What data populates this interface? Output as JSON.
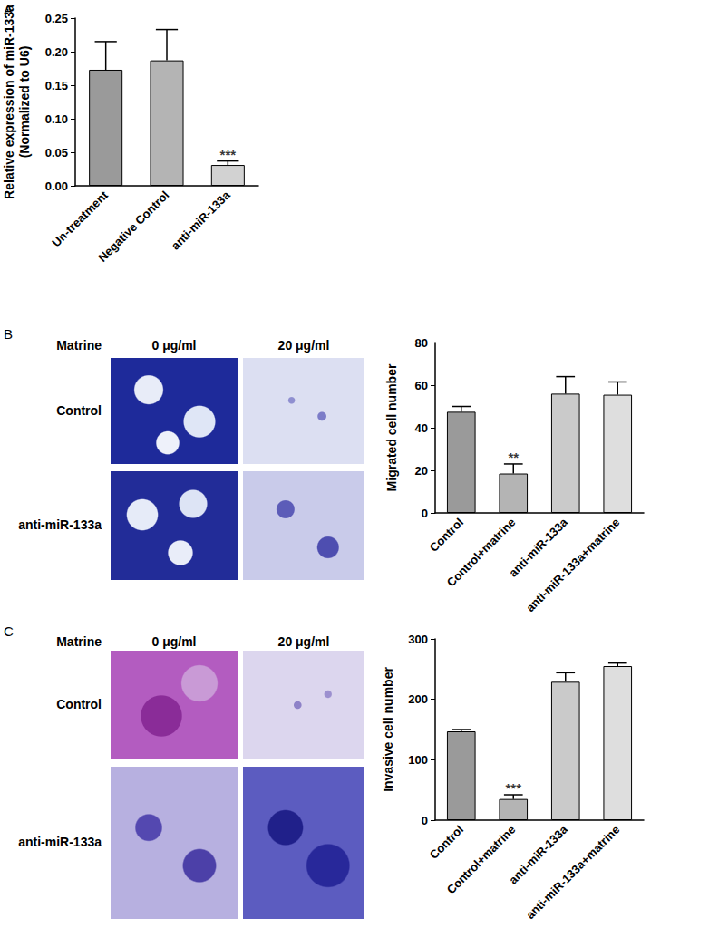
{
  "chart_data": [
    {
      "type": "bar",
      "panel": "A",
      "ylabel": "Relative expression of miR-133a\n(Normalized to U6)",
      "categories": [
        "Un-treatment",
        "Negative Control",
        "anti-miR-133a"
      ],
      "values": [
        0.173,
        0.187,
        0.031
      ],
      "errors": [
        0.042,
        0.046,
        0.006
      ],
      "colors": [
        "#9a9a9a",
        "#b4b4b4",
        "#d2d2d2"
      ],
      "annotations": [
        {
          "category": "anti-miR-133a",
          "text": "***"
        }
      ],
      "ylim": [
        0,
        0.25
      ],
      "yticks": [
        {
          "value": 0,
          "label": "0.00"
        },
        {
          "value": 0.05,
          "label": "0.05"
        },
        {
          "value": 0.1,
          "label": "0.10"
        },
        {
          "value": 0.15,
          "label": "0.15"
        },
        {
          "value": 0.2,
          "label": "0.20"
        },
        {
          "value": 0.25,
          "label": "0.25"
        }
      ],
      "grid": false
    },
    {
      "type": "bar",
      "panel": "B",
      "ylabel": "Migrated cell number",
      "categories": [
        "Control",
        "Control+matrine",
        "anti-miR-133a",
        "anti-miR-133a+matrine"
      ],
      "values": [
        47.5,
        18.5,
        56,
        55.5
      ],
      "errors": [
        2.5,
        4.5,
        8,
        6
      ],
      "colors": [
        "#9a9a9a",
        "#b4b4b4",
        "#cacaca",
        "#dedede"
      ],
      "annotations": [
        {
          "category": "Control+matrine",
          "text": "**"
        }
      ],
      "ylim": [
        0,
        80
      ],
      "yticks": [
        0,
        20,
        40,
        60,
        80
      ],
      "grid": false
    },
    {
      "type": "bar",
      "panel": "C",
      "ylabel": "Invasive cell number",
      "categories": [
        "Control",
        "Control+matrine",
        "anti-miR-133a",
        "anti-miR-133a+matrine"
      ],
      "values": [
        147,
        35,
        229,
        255
      ],
      "errors": [
        3,
        7,
        15,
        5
      ],
      "colors": [
        "#9a9a9a",
        "#b4b4b4",
        "#cacaca",
        "#dedede"
      ],
      "annotations": [
        {
          "category": "Control+matrine",
          "text": "***"
        }
      ],
      "ylim": [
        0,
        300
      ],
      "yticks": [
        0,
        100,
        200,
        300
      ],
      "grid": false
    }
  ],
  "image_grids": [
    {
      "header": "Matrine",
      "columns": [
        "0 μg/ml",
        "20 μg/ml"
      ],
      "rows": [
        "Control",
        "anti-miR-133a"
      ]
    },
    {
      "header": "Matrine",
      "columns": [
        "0 μg/ml",
        "20 μg/ml"
      ],
      "rows": [
        "Control",
        "anti-miR-133a"
      ]
    }
  ]
}
